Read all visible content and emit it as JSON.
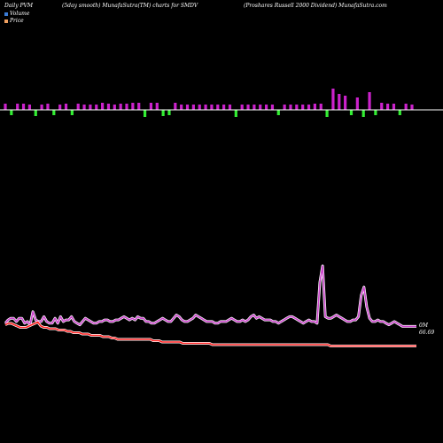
{
  "header": {
    "left": "Daily PVM",
    "center": "(5day smooth) MunafaSutra(TM) charts for SMDV",
    "right": "(Proshares Russell 2000 Dividend) MunafaSutra.com"
  },
  "legend": {
    "volume_label": "Volume",
    "price_label": "Price",
    "volume_color": "#3a7bd5",
    "price_color": "#f0a060"
  },
  "colors": {
    "up_bar": "#cc22cc",
    "down_bar": "#33ee33",
    "volume_line": "#cc44cc",
    "volume_line_outer": "#ffffff",
    "price_line": "#ff2222",
    "price_line_outer": "#ffffff",
    "baseline": "#ffffff"
  },
  "labels": {
    "volume_end": "0M",
    "price_end": "66.69"
  },
  "chart_data": {
    "type": "line",
    "bars": [
      {
        "dir": "up",
        "value": 7
      },
      {
        "dir": "down",
        "value": 6
      },
      {
        "dir": "up",
        "value": 7
      },
      {
        "dir": "up",
        "value": 7
      },
      {
        "dir": "up",
        "value": 6
      },
      {
        "dir": "down",
        "value": 7
      },
      {
        "dir": "up",
        "value": 6
      },
      {
        "dir": "up",
        "value": 7
      },
      {
        "dir": "down",
        "value": 6
      },
      {
        "dir": "up",
        "value": 6
      },
      {
        "dir": "up",
        "value": 7
      },
      {
        "dir": "down",
        "value": 6
      },
      {
        "dir": "up",
        "value": 7
      },
      {
        "dir": "up",
        "value": 6
      },
      {
        "dir": "up",
        "value": 6
      },
      {
        "dir": "up",
        "value": 6
      },
      {
        "dir": "up",
        "value": 8
      },
      {
        "dir": "up",
        "value": 7
      },
      {
        "dir": "up",
        "value": 6
      },
      {
        "dir": "up",
        "value": 7
      },
      {
        "dir": "up",
        "value": 7
      },
      {
        "dir": "up",
        "value": 8
      },
      {
        "dir": "up",
        "value": 8
      },
      {
        "dir": "down",
        "value": 8
      },
      {
        "dir": "up",
        "value": 8
      },
      {
        "dir": "up",
        "value": 8
      },
      {
        "dir": "down",
        "value": 7
      },
      {
        "dir": "down",
        "value": 6
      },
      {
        "dir": "up",
        "value": 8
      },
      {
        "dir": "up",
        "value": 6
      },
      {
        "dir": "up",
        "value": 6
      },
      {
        "dir": "up",
        "value": 6
      },
      {
        "dir": "up",
        "value": 6
      },
      {
        "dir": "up",
        "value": 6
      },
      {
        "dir": "up",
        "value": 6
      },
      {
        "dir": "up",
        "value": 6
      },
      {
        "dir": "up",
        "value": 6
      },
      {
        "dir": "up",
        "value": 6
      },
      {
        "dir": "down",
        "value": 8
      },
      {
        "dir": "up",
        "value": 6
      },
      {
        "dir": "up",
        "value": 6
      },
      {
        "dir": "up",
        "value": 6
      },
      {
        "dir": "up",
        "value": 6
      },
      {
        "dir": "up",
        "value": 6
      },
      {
        "dir": "up",
        "value": 6
      },
      {
        "dir": "down",
        "value": 6
      },
      {
        "dir": "up",
        "value": 6
      },
      {
        "dir": "up",
        "value": 6
      },
      {
        "dir": "up",
        "value": 6
      },
      {
        "dir": "up",
        "value": 6
      },
      {
        "dir": "up",
        "value": 6
      },
      {
        "dir": "up",
        "value": 7
      },
      {
        "dir": "up",
        "value": 7
      },
      {
        "dir": "down",
        "value": 8
      },
      {
        "dir": "up",
        "value": 24
      },
      {
        "dir": "up",
        "value": 18
      },
      {
        "dir": "up",
        "value": 16
      },
      {
        "dir": "down",
        "value": 6
      },
      {
        "dir": "up",
        "value": 14
      },
      {
        "dir": "down",
        "value": 8
      },
      {
        "dir": "up",
        "value": 20
      },
      {
        "dir": "down",
        "value": 6
      },
      {
        "dir": "up",
        "value": 8
      },
      {
        "dir": "up",
        "value": 7
      },
      {
        "dir": "up",
        "value": 7
      },
      {
        "dir": "down",
        "value": 6
      },
      {
        "dir": "up",
        "value": 7
      },
      {
        "dir": "up",
        "value": 6
      }
    ],
    "volume": [
      5,
      7,
      8,
      8,
      6,
      8,
      8,
      5,
      6,
      4,
      12,
      7,
      6,
      6,
      9,
      6,
      5,
      5,
      8,
      5,
      9,
      6,
      7,
      7,
      9,
      6,
      5,
      4,
      6,
      8,
      7,
      6,
      5,
      5,
      6,
      6,
      7,
      7,
      6,
      6,
      7,
      7,
      8,
      9,
      8,
      7,
      8,
      7,
      9,
      8,
      8,
      6,
      6,
      5,
      5,
      6,
      7,
      8,
      7,
      6,
      6,
      8,
      10,
      9,
      7,
      6,
      6,
      7,
      8,
      10,
      9,
      8,
      7,
      6,
      6,
      6,
      5,
      5,
      6,
      6,
      6,
      7,
      8,
      7,
      6,
      6,
      7,
      6,
      7,
      9,
      10,
      8,
      9,
      8,
      7,
      7,
      7,
      6,
      6,
      5,
      6,
      7,
      8,
      9,
      9,
      8,
      7,
      6,
      5,
      6,
      7,
      6,
      6,
      5,
      30,
      40,
      9,
      8,
      8,
      9,
      10,
      9,
      8,
      7,
      6,
      6,
      7,
      7,
      9,
      22,
      27,
      15,
      8,
      6,
      6,
      7,
      6,
      6,
      5,
      4,
      5,
      6,
      5,
      4,
      3,
      3,
      3,
      3,
      3,
      3
    ],
    "price": [
      5,
      6,
      6,
      5,
      4,
      3,
      3,
      3,
      4,
      5,
      6,
      7,
      4,
      3,
      3,
      2,
      2,
      2,
      1,
      1,
      1,
      0,
      0,
      -1,
      -1,
      -1,
      -2,
      -2,
      -2,
      -3,
      -3,
      -3,
      -3,
      -4,
      -4,
      -4,
      -5,
      -5,
      -6,
      -6,
      -6,
      -6,
      -6,
      -6,
      -6,
      -6,
      -6,
      -6,
      -6,
      -6,
      -7,
      -7,
      -7,
      -8,
      -8,
      -8,
      -8,
      -8,
      -8,
      -8,
      -9,
      -9,
      -9,
      -9,
      -9,
      -9,
      -9,
      -9,
      -9,
      -9,
      -10,
      -10,
      -10,
      -10,
      -10,
      -10,
      -10,
      -10,
      -10,
      -10,
      -10,
      -10,
      -10,
      -10,
      -10,
      -10,
      -10,
      -10,
      -10,
      -10,
      -10,
      -10,
      -10,
      -10,
      -10,
      -10,
      -10,
      -10,
      -10,
      -10,
      -10,
      -10,
      -10,
      -10,
      -10,
      -10,
      -10,
      -10,
      -10,
      -10,
      -11,
      -11,
      -11,
      -11,
      -11,
      -11,
      -11,
      -11,
      -11,
      -11,
      -11,
      -11,
      -11,
      -11,
      -11,
      -11,
      -11,
      -11,
      -11,
      -11,
      -11,
      -11,
      -11,
      -11,
      -11,
      -11,
      -11,
      -11,
      -11,
      -11
    ],
    "volume_ylim": [
      0,
      40
    ],
    "price_ylim": [
      -12,
      8
    ],
    "grid": false
  }
}
